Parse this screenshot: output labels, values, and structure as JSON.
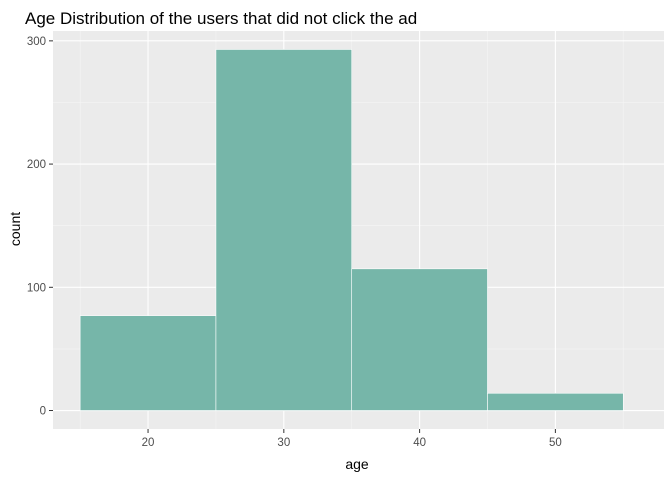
{
  "chart_data": {
    "type": "bar",
    "subtype": "histogram",
    "title": "Age Distribution of the users that did not click the ad",
    "xlabel": "age",
    "ylabel": "count",
    "bins": [
      {
        "x0": 15,
        "x1": 25,
        "count": 77
      },
      {
        "x0": 25,
        "x1": 35,
        "count": 293
      },
      {
        "x0": 35,
        "x1": 45,
        "count": 115
      },
      {
        "x0": 45,
        "x1": 55,
        "count": 14
      }
    ],
    "xlim": [
      13,
      58
    ],
    "ylim": [
      -15,
      308
    ],
    "x_ticks": [
      20,
      30,
      40,
      50
    ],
    "y_ticks": [
      0,
      100,
      200,
      300
    ],
    "grid": true,
    "colors": {
      "fill": "#76b6a9",
      "bar_outline": "#ffffff",
      "panel_background": "#ebebeb",
      "grid_major": "#ffffff",
      "grid_minor": "#f5f5f5",
      "tick_text": "#4d4d4d"
    }
  }
}
